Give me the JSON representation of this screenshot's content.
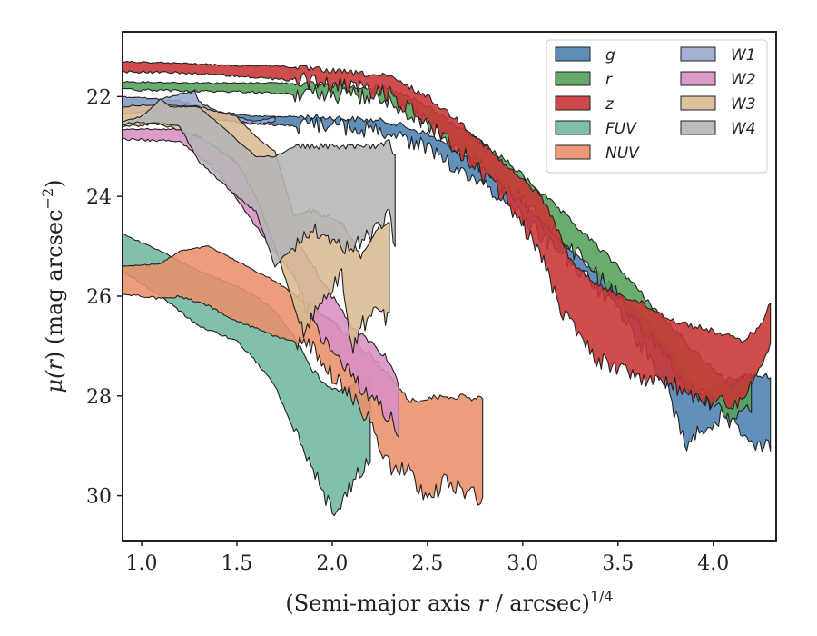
{
  "chart_data": {
    "type": "area",
    "xlabel_main": "(Semi-major axis ",
    "xlabel_var": "r",
    "xlabel_unit": " / arcsec)",
    "xlabel_exp": "1/4",
    "ylabel_main": "μ(",
    "ylabel_var": "r",
    "ylabel_unit": ") (mag arcsec",
    "ylabel_exp": "−2",
    "ylabel_close": ")",
    "xlim": [
      0.9,
      4.33
    ],
    "ylim": [
      30.9,
      20.7
    ],
    "y_inverted": true,
    "x_ticks": [
      {
        "value": 1.0,
        "label": "1.0"
      },
      {
        "value": 1.5,
        "label": "1.5"
      },
      {
        "value": 2.0,
        "label": "2.0"
      },
      {
        "value": 2.5,
        "label": "2.5"
      },
      {
        "value": 3.0,
        "label": "3.0"
      },
      {
        "value": 3.5,
        "label": "3.5"
      },
      {
        "value": 4.0,
        "label": "4.0"
      }
    ],
    "y_ticks": [
      {
        "value": 22,
        "label": "22"
      },
      {
        "value": 24,
        "label": "24"
      },
      {
        "value": 26,
        "label": "26"
      },
      {
        "value": 28,
        "label": "28"
      },
      {
        "value": 30,
        "label": "30"
      }
    ],
    "grid": false,
    "legend_position": "top-right",
    "series": [
      {
        "name": "g",
        "color": "#4c81b0",
        "upper": [
          [
            0.9,
            22.05
          ],
          [
            1.2,
            22.08
          ],
          [
            1.4,
            22.3
          ],
          [
            1.6,
            22.4
          ],
          [
            1.8,
            22.4
          ],
          [
            2.0,
            22.42
          ],
          [
            2.3,
            22.5
          ],
          [
            2.5,
            22.75
          ],
          [
            2.7,
            23.2
          ],
          [
            2.9,
            23.75
          ],
          [
            3.05,
            24.3
          ],
          [
            3.2,
            24.9
          ],
          [
            3.35,
            25.4
          ],
          [
            3.5,
            25.9
          ],
          [
            3.6,
            26.3
          ],
          [
            3.75,
            26.9
          ],
          [
            3.85,
            27.5
          ],
          [
            3.95,
            28.0
          ],
          [
            4.05,
            27.7
          ],
          [
            4.2,
            27.6
          ],
          [
            4.3,
            27.6
          ]
        ],
        "lower": [
          [
            4.3,
            29.0
          ],
          [
            4.2,
            28.9
          ],
          [
            4.05,
            28.4
          ],
          [
            3.95,
            28.6
          ],
          [
            3.85,
            29.0
          ],
          [
            3.75,
            27.7
          ],
          [
            3.6,
            26.9
          ],
          [
            3.5,
            26.3
          ],
          [
            3.35,
            25.7
          ],
          [
            3.2,
            25.2
          ],
          [
            3.05,
            24.6
          ],
          [
            2.9,
            24.05
          ],
          [
            2.7,
            23.5
          ],
          [
            2.5,
            23.05
          ],
          [
            2.3,
            22.7
          ],
          [
            2.0,
            22.6
          ],
          [
            1.8,
            22.58
          ],
          [
            1.6,
            22.55
          ],
          [
            1.4,
            22.45
          ],
          [
            1.2,
            22.25
          ],
          [
            0.9,
            22.22
          ]
        ]
      },
      {
        "name": "r",
        "color": "#55a05a",
        "upper": [
          [
            0.9,
            21.7
          ],
          [
            1.2,
            21.72
          ],
          [
            1.5,
            21.73
          ],
          [
            1.7,
            21.72
          ],
          [
            1.9,
            21.75
          ],
          [
            2.1,
            21.78
          ],
          [
            2.3,
            21.85
          ],
          [
            2.5,
            22.2
          ],
          [
            2.7,
            22.7
          ],
          [
            2.9,
            23.25
          ],
          [
            3.05,
            23.75
          ],
          [
            3.2,
            24.3
          ],
          [
            3.35,
            24.85
          ],
          [
            3.5,
            25.4
          ],
          [
            3.6,
            25.85
          ],
          [
            3.75,
            26.5
          ],
          [
            3.9,
            27.1
          ],
          [
            4.1,
            27.8
          ],
          [
            4.2,
            27.5
          ]
        ],
        "lower": [
          [
            4.2,
            28.3
          ],
          [
            4.1,
            28.5
          ],
          [
            3.9,
            27.9
          ],
          [
            3.75,
            27.2
          ],
          [
            3.6,
            26.5
          ],
          [
            3.5,
            26.0
          ],
          [
            3.35,
            25.4
          ],
          [
            3.2,
            24.85
          ],
          [
            3.05,
            24.3
          ],
          [
            2.9,
            23.75
          ],
          [
            2.7,
            23.15
          ],
          [
            2.5,
            22.55
          ],
          [
            2.3,
            22.1
          ],
          [
            2.1,
            21.98
          ],
          [
            1.9,
            21.95
          ],
          [
            1.7,
            21.93
          ],
          [
            1.5,
            21.9
          ],
          [
            1.2,
            21.88
          ],
          [
            0.9,
            21.86
          ]
        ]
      },
      {
        "name": "z",
        "color": "#c83434",
        "upper": [
          [
            0.9,
            21.3
          ],
          [
            1.2,
            21.33
          ],
          [
            1.5,
            21.38
          ],
          [
            1.7,
            21.38
          ],
          [
            1.9,
            21.45
          ],
          [
            2.1,
            21.52
          ],
          [
            2.3,
            21.6
          ],
          [
            2.5,
            22.0
          ],
          [
            2.7,
            22.6
          ],
          [
            2.9,
            23.35
          ],
          [
            3.1,
            24.0
          ],
          [
            3.2,
            24.8
          ],
          [
            3.25,
            25.3
          ],
          [
            3.4,
            25.8
          ],
          [
            3.6,
            26.1
          ],
          [
            3.8,
            26.5
          ],
          [
            4.0,
            26.7
          ],
          [
            4.15,
            26.9
          ],
          [
            4.25,
            26.6
          ],
          [
            4.3,
            26.1
          ]
        ],
        "lower": [
          [
            4.3,
            26.8
          ],
          [
            4.25,
            27.4
          ],
          [
            4.15,
            28.1
          ],
          [
            4.0,
            28.2
          ],
          [
            3.8,
            27.8
          ],
          [
            3.6,
            27.6
          ],
          [
            3.4,
            27.3
          ],
          [
            3.2,
            26.3
          ],
          [
            3.1,
            25.2
          ],
          [
            2.9,
            24.0
          ],
          [
            2.7,
            23.2
          ],
          [
            2.5,
            22.5
          ],
          [
            2.3,
            21.95
          ],
          [
            2.1,
            21.8
          ],
          [
            1.9,
            21.7
          ],
          [
            1.7,
            21.65
          ],
          [
            1.5,
            21.58
          ],
          [
            1.2,
            21.52
          ],
          [
            0.9,
            21.5
          ]
        ]
      },
      {
        "name": "FUV",
        "color": "#6fb8a0",
        "upper": [
          [
            0.9,
            24.75
          ],
          [
            1.1,
            25.1
          ],
          [
            1.3,
            25.5
          ],
          [
            1.5,
            25.8
          ],
          [
            1.6,
            26.0
          ],
          [
            1.7,
            26.3
          ],
          [
            1.8,
            26.8
          ],
          [
            1.9,
            27.5
          ],
          [
            2.0,
            27.9
          ],
          [
            2.1,
            27.8
          ],
          [
            2.2,
            27.6
          ]
        ],
        "lower": [
          [
            2.2,
            29.2
          ],
          [
            2.1,
            29.8
          ],
          [
            2.0,
            30.35
          ],
          [
            1.9,
            29.5
          ],
          [
            1.8,
            28.7
          ],
          [
            1.7,
            27.8
          ],
          [
            1.6,
            27.3
          ],
          [
            1.5,
            26.9
          ],
          [
            1.3,
            26.6
          ],
          [
            1.1,
            26.0
          ],
          [
            0.9,
            25.5
          ]
        ]
      },
      {
        "name": "NUV",
        "color": "#e88f6a",
        "upper": [
          [
            0.9,
            25.4
          ],
          [
            1.1,
            25.35
          ],
          [
            1.2,
            25.1
          ],
          [
            1.35,
            25.0
          ],
          [
            1.5,
            25.3
          ],
          [
            1.7,
            25.7
          ],
          [
            1.9,
            26.2
          ],
          [
            2.0,
            26.5
          ],
          [
            2.1,
            26.9
          ],
          [
            2.2,
            27.2
          ],
          [
            2.35,
            27.8
          ],
          [
            2.4,
            28.1
          ],
          [
            2.5,
            28.05
          ],
          [
            2.6,
            28.0
          ],
          [
            2.78,
            28.05
          ],
          [
            2.79,
            28.1
          ]
        ],
        "lower": [
          [
            2.79,
            30.1
          ],
          [
            2.6,
            29.7
          ],
          [
            2.5,
            30.1
          ],
          [
            2.4,
            29.5
          ],
          [
            2.3,
            29.4
          ],
          [
            2.2,
            28.5
          ],
          [
            2.1,
            28.0
          ],
          [
            2.0,
            27.6
          ],
          [
            1.9,
            27.0
          ],
          [
            1.7,
            26.8
          ],
          [
            1.5,
            26.5
          ],
          [
            1.35,
            26.2
          ],
          [
            1.2,
            26.0
          ],
          [
            1.1,
            26.05
          ],
          [
            0.9,
            25.95
          ]
        ]
      },
      {
        "name": "W1",
        "color": "#9aa8cc",
        "upper": [
          [
            0.9,
            22.0
          ],
          [
            1.1,
            22.05
          ],
          [
            1.2,
            21.95
          ],
          [
            1.28,
            21.9
          ],
          [
            1.3,
            22.1
          ],
          [
            1.4,
            22.3
          ],
          [
            1.5,
            22.4
          ],
          [
            1.6,
            22.5
          ],
          [
            1.7,
            22.4
          ]
        ],
        "lower": [
          [
            1.7,
            22.5
          ],
          [
            1.6,
            22.55
          ],
          [
            1.5,
            22.5
          ],
          [
            1.4,
            22.45
          ],
          [
            1.3,
            22.4
          ],
          [
            1.2,
            22.35
          ],
          [
            1.1,
            22.3
          ],
          [
            0.9,
            22.32
          ]
        ]
      },
      {
        "name": "W2",
        "color": "#d78fc4",
        "upper": [
          [
            0.9,
            22.65
          ],
          [
            1.2,
            22.65
          ],
          [
            1.4,
            23.0
          ],
          [
            1.6,
            23.7
          ],
          [
            1.8,
            24.8
          ],
          [
            1.9,
            25.4
          ],
          [
            2.0,
            26.0
          ],
          [
            2.1,
            26.6
          ],
          [
            2.2,
            26.9
          ],
          [
            2.3,
            27.3
          ],
          [
            2.35,
            27.8
          ]
        ],
        "lower": [
          [
            2.35,
            28.7
          ],
          [
            2.3,
            28.4
          ],
          [
            2.2,
            28.0
          ],
          [
            2.1,
            27.6
          ],
          [
            2.0,
            27.1
          ],
          [
            1.9,
            26.5
          ],
          [
            1.8,
            25.6
          ],
          [
            1.6,
            24.6
          ],
          [
            1.4,
            23.5
          ],
          [
            1.2,
            22.9
          ],
          [
            0.9,
            22.85
          ]
        ]
      },
      {
        "name": "W3",
        "color": "#d8bb92",
        "upper": [
          [
            0.9,
            22.2
          ],
          [
            1.1,
            22.15
          ],
          [
            1.3,
            22.2
          ],
          [
            1.5,
            22.4
          ],
          [
            1.6,
            22.8
          ],
          [
            1.7,
            23.1
          ],
          [
            1.8,
            24.4
          ],
          [
            1.85,
            24.3
          ],
          [
            1.9,
            24.3
          ],
          [
            2.05,
            24.5
          ],
          [
            2.15,
            25.2
          ],
          [
            2.25,
            24.6
          ],
          [
            2.3,
            24.5
          ]
        ],
        "lower": [
          [
            2.3,
            26.5
          ],
          [
            2.25,
            26.3
          ],
          [
            2.15,
            26.6
          ],
          [
            2.1,
            27.1
          ],
          [
            2.05,
            25.6
          ],
          [
            1.9,
            26.4
          ],
          [
            1.85,
            26.8
          ],
          [
            1.8,
            26.2
          ],
          [
            1.7,
            25.0
          ],
          [
            1.6,
            24.0
          ],
          [
            1.5,
            23.3
          ],
          [
            1.3,
            22.8
          ],
          [
            1.1,
            22.55
          ],
          [
            0.9,
            22.6
          ]
        ]
      },
      {
        "name": "W4",
        "color": "#b5b5b5",
        "upper": [
          [
            0.9,
            22.5
          ],
          [
            1.0,
            22.4
          ],
          [
            1.1,
            22.05
          ],
          [
            1.15,
            22.2
          ],
          [
            1.3,
            22.2
          ],
          [
            1.45,
            22.7
          ],
          [
            1.6,
            23.2
          ],
          [
            1.7,
            23.2
          ],
          [
            1.8,
            23.0
          ],
          [
            2.0,
            23.0
          ],
          [
            2.25,
            23.0
          ],
          [
            2.3,
            22.9
          ],
          [
            2.32,
            23.1
          ],
          [
            2.33,
            23.2
          ]
        ],
        "lower": [
          [
            2.33,
            25.1
          ],
          [
            2.3,
            24.3
          ],
          [
            2.25,
            24.6
          ],
          [
            2.1,
            25.0
          ],
          [
            2.0,
            25.0
          ],
          [
            1.9,
            24.6
          ],
          [
            1.7,
            25.4
          ],
          [
            1.6,
            24.3
          ],
          [
            1.5,
            24.0
          ],
          [
            1.3,
            23.3
          ],
          [
            1.2,
            22.6
          ],
          [
            1.1,
            22.55
          ],
          [
            1.0,
            22.52
          ],
          [
            0.9,
            22.55
          ]
        ]
      }
    ]
  }
}
